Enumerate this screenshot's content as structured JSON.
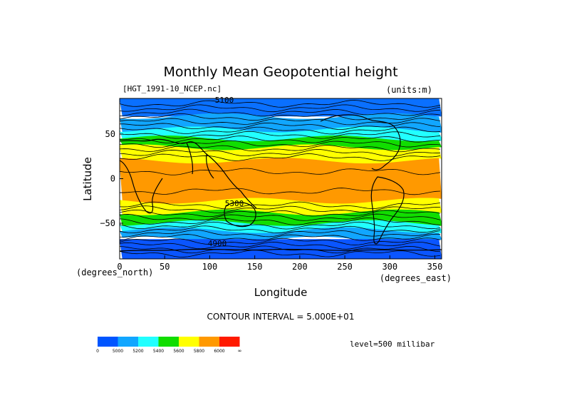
{
  "chart_data": {
    "type": "heatmap",
    "title": "Monthly Mean Geopotential height",
    "source_label": "[HGT_1991-10_NCEP.nc]",
    "units_label": "(units:m)",
    "xlabel": "Longitude",
    "ylabel": "Latitude",
    "x_unit_label": "(degrees_east)",
    "y_unit_label": "(degrees_north)",
    "xlim": [
      0,
      357.5
    ],
    "ylim": [
      -90,
      90
    ],
    "x_ticks": [
      "0",
      "50",
      "100",
      "150",
      "200",
      "250",
      "300",
      "350"
    ],
    "y_ticks": [
      "50",
      "0",
      "−50"
    ],
    "contour_interval_label": "CONTOUR INTERVAL = 5.000E+01",
    "level_label": "level=500 millibar",
    "contour_labels": [
      "5100",
      "5300",
      "4900"
    ],
    "legend": {
      "bins": [
        {
          "color": "#0055ff",
          "label": "0"
        },
        {
          "color": "#11a6ff",
          "label": "5000"
        },
        {
          "color": "#22ffff",
          "label": "5200"
        },
        {
          "color": "#11dd00",
          "label": "5400"
        },
        {
          "color": "#ffff00",
          "label": "5600"
        },
        {
          "color": "#ff9900",
          "label": "5800"
        },
        {
          "color": "#ff1a00",
          "label": "6000"
        }
      ],
      "end_label": "∞"
    },
    "bands": [
      {
        "lat": [
          70,
          90
        ],
        "color": "#0a70ff"
      },
      {
        "lat": [
          55,
          70
        ],
        "color": "#11a6ff"
      },
      {
        "lat": [
          45,
          55
        ],
        "color": "#22ffff"
      },
      {
        "lat": [
          35,
          45
        ],
        "color": "#11dd00"
      },
      {
        "lat": [
          20,
          35
        ],
        "color": "#ffff00"
      },
      {
        "lat": [
          -25,
          20
        ],
        "color": "#ff9900"
      },
      {
        "lat": [
          -38,
          -25
        ],
        "color": "#ffff00"
      },
      {
        "lat": [
          -50,
          -38
        ],
        "color": "#11dd00"
      },
      {
        "lat": [
          -58,
          -50
        ],
        "color": "#22ffff"
      },
      {
        "lat": [
          -68,
          -58
        ],
        "color": "#11a6ff"
      },
      {
        "lat": [
          -90,
          -68
        ],
        "color": "#0a55ff"
      }
    ]
  }
}
